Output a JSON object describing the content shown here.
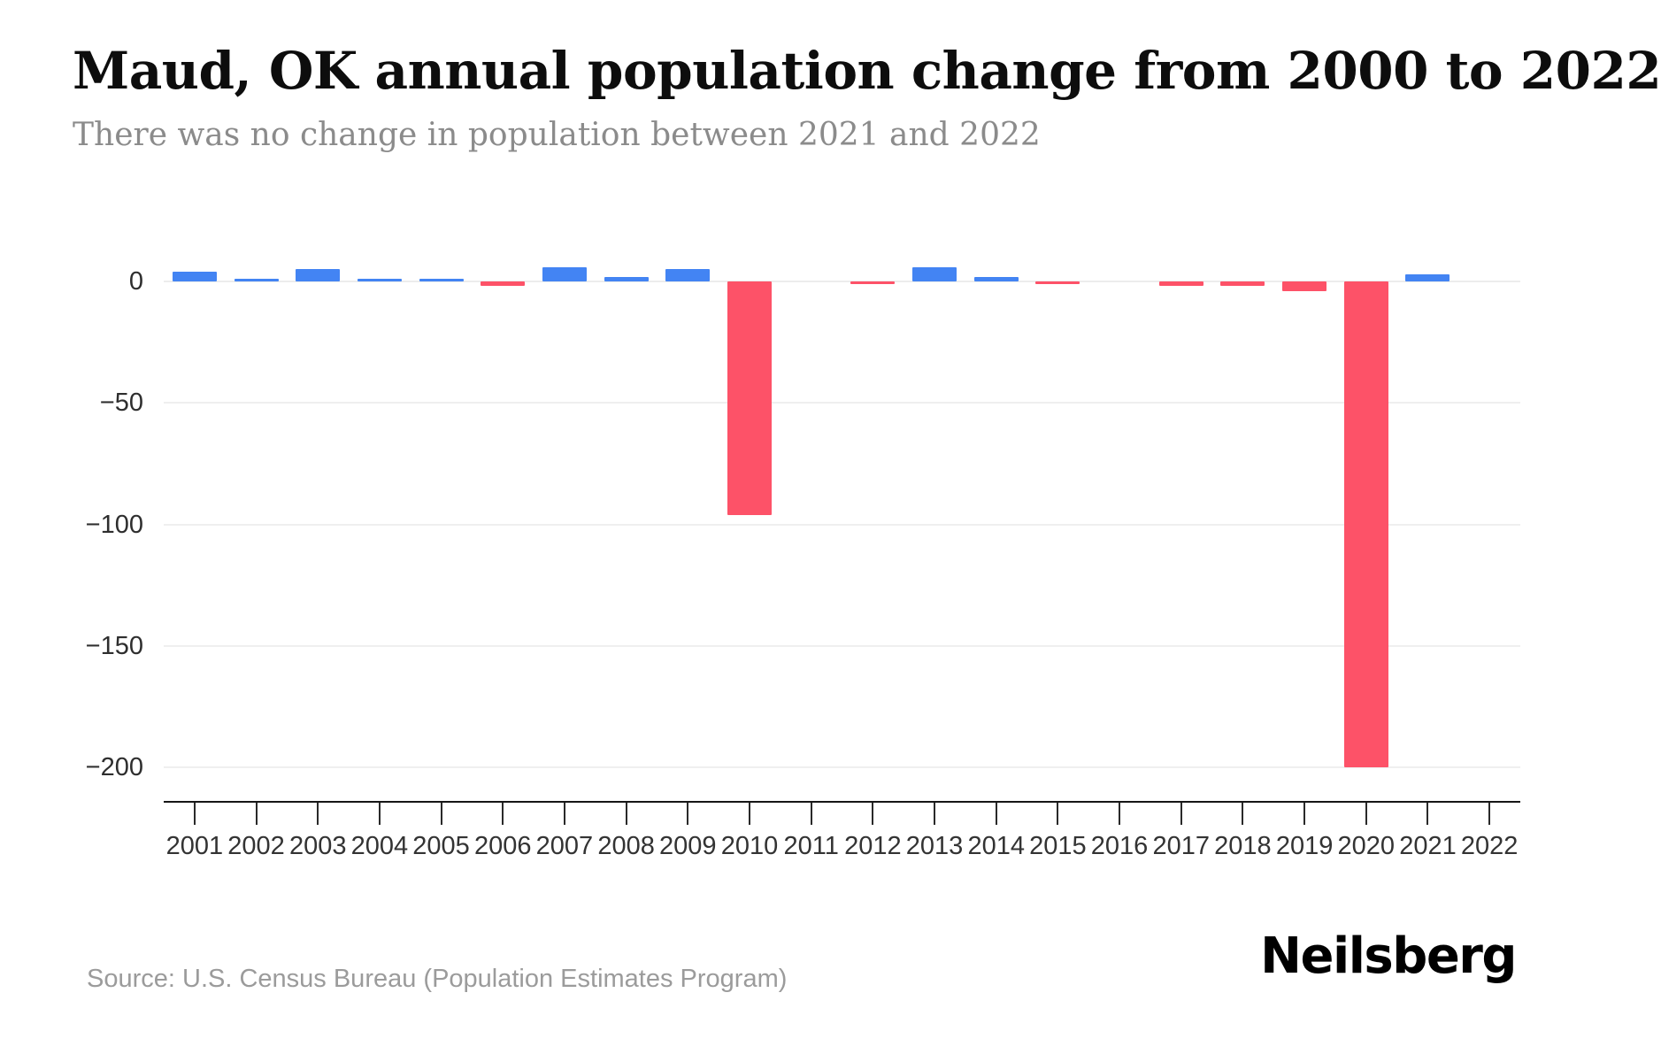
{
  "header": {
    "title": "Maud, OK annual population change from 2000 to 2022",
    "subtitle": "There was no change in population between 2021 and 2022"
  },
  "footer": {
    "source": "Source: U.S. Census Bureau (Population Estimates Program)",
    "brand": "Neilsberg"
  },
  "chart_data": {
    "type": "bar",
    "title": "Maud, OK annual population change from 2000 to 2022",
    "subtitle": "There was no change in population between 2021 and 2022",
    "categories": [
      "2001",
      "2002",
      "2003",
      "2004",
      "2005",
      "2006",
      "2007",
      "2008",
      "2009",
      "2010",
      "2011",
      "2012",
      "2013",
      "2014",
      "2015",
      "2016",
      "2017",
      "2018",
      "2019",
      "2020",
      "2021",
      "2022"
    ],
    "values": [
      4,
      1,
      5,
      1,
      1,
      -2,
      6,
      2,
      5,
      -96,
      0,
      -1,
      6,
      2,
      -1,
      0,
      -2,
      -2,
      -4,
      -200,
      3,
      0
    ],
    "xlabel": "",
    "ylabel": "",
    "ylim": [
      -214,
      21
    ],
    "yticks": [
      0,
      -50,
      -100,
      -150,
      -200
    ],
    "ytick_labels": [
      "0",
      "−50",
      "−100",
      "−150",
      "−200"
    ],
    "grid": true,
    "legend": "none",
    "colors": {
      "positive": "#4384F3",
      "negative": "#FD5268",
      "gridline": "#efefef",
      "zero_gridline": "#ececec",
      "axis_line": "#161616",
      "tick_mark": "#2a2a2a",
      "tick_label": "#333333"
    }
  }
}
